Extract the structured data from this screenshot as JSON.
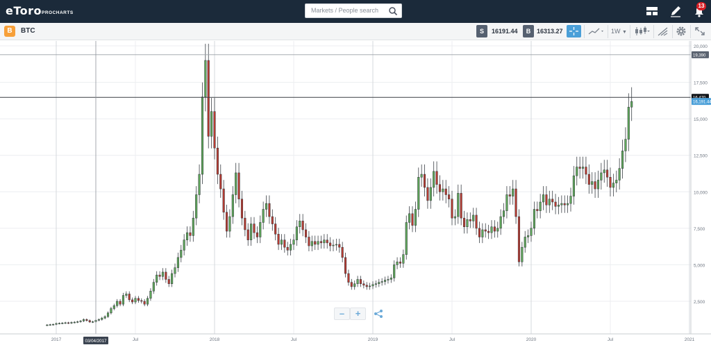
{
  "app": {
    "logo": "eToro",
    "logo_sub": "PROCHARTS",
    "search_placeholder": "Markets / People search",
    "notifications_count": "13"
  },
  "instrument": {
    "icon_letter": "B",
    "name": "BTC",
    "sell_label": "S",
    "sell_price": "16191.44",
    "buy_label": "B",
    "buy_price": "16313.27",
    "timeframe": "1W"
  },
  "icons": {
    "search": "search-icon",
    "layout": "layout-icon",
    "edit": "pencil-icon",
    "notifications": "notifications-icon",
    "crosshair": "crosshair-icon",
    "chart_type": "line-chart-icon",
    "candles": "candlestick-icon",
    "draw": "draw-icon",
    "settings": "gear-icon",
    "fullscreen": "fullscreen-icon",
    "zoom_out": "minus-icon",
    "zoom_in": "plus-icon",
    "share": "share-icon"
  },
  "colors": {
    "topbar": "#1b2a3a",
    "up_candle": "#5fa85b",
    "down_candle": "#b83b32",
    "price_tag": "#4a9fd8",
    "accent": "#4a9fd8"
  },
  "chart_data": {
    "type": "candlestick",
    "title": "",
    "xlabel": "",
    "ylabel": "",
    "ylim": [
      0,
      20500
    ],
    "grid": true,
    "y_ticks": [
      "2,500",
      "5,000",
      "7,500",
      "10,000",
      "12,500",
      "15,000",
      "17,500",
      "20,000"
    ],
    "y_tick_values": [
      2500,
      5000,
      7500,
      10000,
      12500,
      15000,
      17500,
      20000
    ],
    "x_ticks": [
      "2017",
      "Jul",
      "2018",
      "Jul",
      "2019",
      "Jul",
      "2020",
      "Jul",
      "2021"
    ],
    "x_tick_weeks": [
      0,
      26,
      52,
      78,
      104,
      130,
      156,
      182,
      208
    ],
    "start_week": -3,
    "cursor_label": "03/04/2017",
    "cursor_week": 13,
    "horizontal_lines": [
      {
        "label": "19,390",
        "value": 19390
      },
      {
        "label": "16,470",
        "value": 16470
      }
    ],
    "current_price_label": "16,191.44",
    "current_price": 16191.44,
    "closes": [
      880,
      900,
      920,
      980,
      990,
      1010,
      1030,
      1000,
      1050,
      1070,
      1100,
      1150,
      1250,
      1180,
      1080,
      1100,
      1200,
      1250,
      1350,
      1450,
      1700,
      2000,
      2200,
      2500,
      2300,
      2900,
      3000,
      2600,
      2450,
      2700,
      2550,
      2500,
      2300,
      2700,
      3200,
      3800,
      4300,
      4200,
      4500,
      4000,
      3700,
      4400,
      4800,
      5500,
      6000,
      6700,
      7200,
      7000,
      8200,
      9800,
      11200,
      16500,
      19000,
      13800,
      15500,
      13000,
      11200,
      10200,
      8600,
      7300,
      8300,
      9800,
      11300,
      9500,
      8200,
      7400,
      6700,
      7800,
      7200,
      6900,
      7900,
      8800,
      9200,
      8300,
      7800,
      7100,
      6400,
      6700,
      6200,
      6000,
      6400,
      6700,
      7600,
      8000,
      7400,
      6900,
      6300,
      6600,
      6400,
      6600,
      6500,
      6700,
      6500,
      6300,
      6350,
      6400,
      6200,
      5500,
      4400,
      3800,
      3500,
      3700,
      4000,
      3700,
      3600,
      3500,
      3550,
      3650,
      3700,
      3800,
      3850,
      3950,
      4000,
      4100,
      5000,
      5200,
      5100,
      5700,
      7900,
      8500,
      7700,
      8800,
      11000,
      11200,
      10300,
      9400,
      10300,
      11400,
      10500,
      10000,
      10200,
      9800,
      9500,
      8200,
      8300,
      9900,
      8200,
      7600,
      8100,
      8000,
      8400,
      7500,
      6900,
      7400,
      7300,
      7200,
      7600,
      7300,
      7500,
      8300,
      8700,
      9800,
      9700,
      10200,
      8300,
      5200,
      6200,
      6900,
      7000,
      7500,
      8800,
      8700,
      9300,
      9800,
      9100,
      9500,
      9300,
      9000,
      9100,
      9200,
      9100,
      9200,
      9700,
      11100,
      11700,
      11600,
      11700,
      11200,
      10500,
      10700,
      10200,
      10800,
      11300,
      11500,
      11000,
      10300,
      10600,
      10800,
      11600,
      12800,
      13600,
      15800,
      16191
    ]
  }
}
